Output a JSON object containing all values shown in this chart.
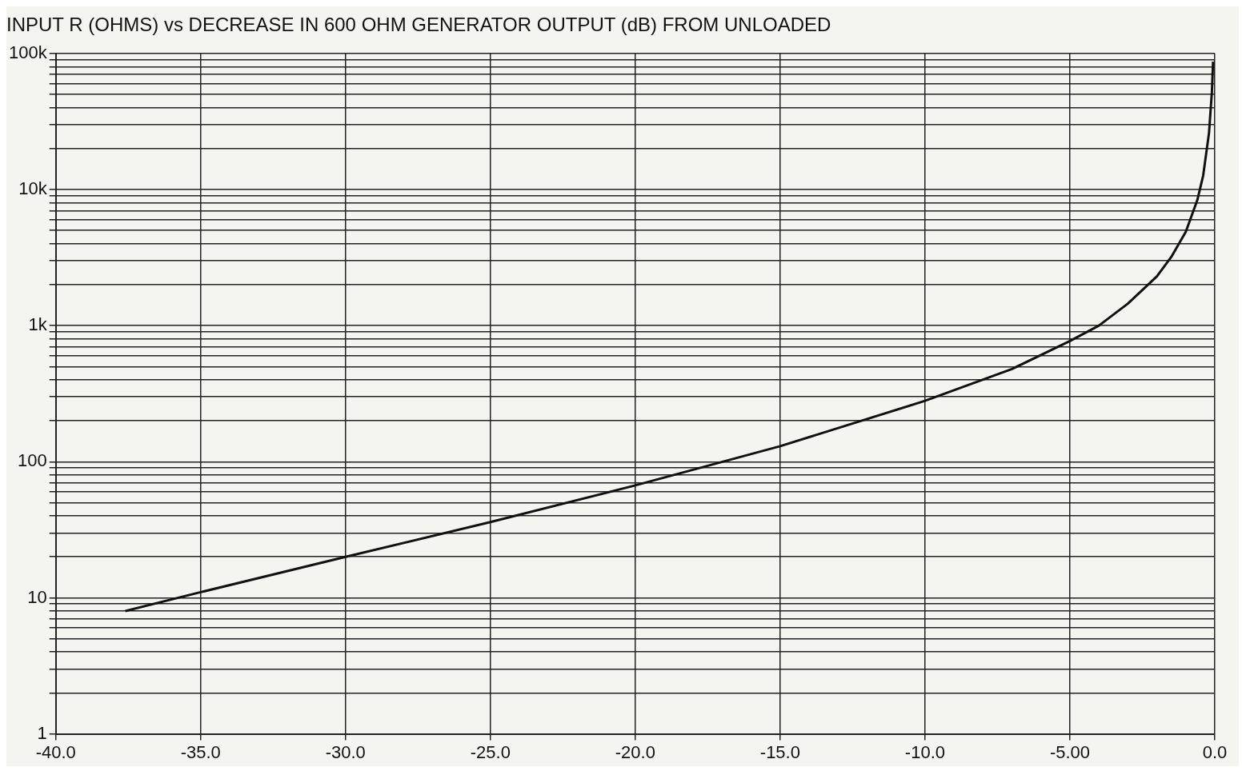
{
  "chart_data": {
    "type": "line",
    "title": "INPUT R (OHMS) vs DECREASE IN 600 OHM GENERATOR OUTPUT (dB) FROM UNLOADED",
    "x": [
      -37.6,
      -35,
      -30,
      -25,
      -20,
      -15,
      -10,
      -7,
      -5,
      -4,
      -3,
      -2,
      -1.5,
      -1,
      -0.6,
      -0.4,
      -0.2,
      -0.1,
      -0.06
    ],
    "series": [
      {
        "color": "#111111",
        "values": [
          8,
          11,
          20,
          36,
          67,
          130,
          280,
          480,
          770,
          1000,
          1450,
          2300,
          3200,
          4900,
          8400,
          12700,
          26000,
          52000,
          87000
        ]
      }
    ],
    "log": "y",
    "grid": true,
    "legend": false,
    "marker": "none",
    "line_style": "solid",
    "xlim": [
      -40,
      0
    ],
    "xticks": [
      {
        "value": -40,
        "label": "-40.0"
      },
      {
        "value": -35,
        "label": "-35.0"
      },
      {
        "value": -30,
        "label": "-30.0"
      },
      {
        "value": -25,
        "label": "-25.0"
      },
      {
        "value": -20,
        "label": "-20.0"
      },
      {
        "value": -15,
        "label": "-15.0"
      },
      {
        "value": -10,
        "label": "-10.0"
      },
      {
        "value": -5,
        "label": "-5.00"
      },
      {
        "value": 0,
        "label": "0.0"
      }
    ],
    "ylim": [
      1,
      100000
    ],
    "yticks": [
      1,
      {
        "value": 2,
        "label": null
      },
      {
        "value": 3,
        "label": null
      },
      {
        "value": 4,
        "label": null
      },
      {
        "value": 5,
        "label": null
      },
      {
        "value": 6,
        "label": null
      },
      {
        "value": 7,
        "label": null
      },
      {
        "value": 8,
        "label": null
      },
      {
        "value": 9,
        "label": null
      },
      10,
      {
        "value": 20,
        "label": null
      },
      {
        "value": 30,
        "label": null
      },
      {
        "value": 40,
        "label": null
      },
      {
        "value": 50,
        "label": null
      },
      {
        "value": 60,
        "label": null
      },
      {
        "value": 70,
        "label": null
      },
      {
        "value": 80,
        "label": null
      },
      {
        "value": 90,
        "label": null
      },
      100,
      {
        "value": 200,
        "label": null
      },
      {
        "value": 300,
        "label": null
      },
      {
        "value": 400,
        "label": null
      },
      {
        "value": 500,
        "label": null
      },
      {
        "value": 600,
        "label": null
      },
      {
        "value": 700,
        "label": null
      },
      {
        "value": 800,
        "label": null
      },
      {
        "value": 900,
        "label": null
      },
      {
        "value": 1000,
        "label": "1k"
      },
      {
        "value": 2000,
        "label": null
      },
      {
        "value": 3000,
        "label": null
      },
      {
        "value": 4000,
        "label": null
      },
      {
        "value": 5000,
        "label": null
      },
      {
        "value": 6000,
        "label": null
      },
      {
        "value": 7000,
        "label": null
      },
      {
        "value": 8000,
        "label": null
      },
      {
        "value": 9000,
        "label": null
      },
      {
        "value": 10000,
        "label": "10k"
      },
      {
        "value": 20000,
        "label": null
      },
      {
        "value": 30000,
        "label": null
      },
      {
        "value": 40000,
        "label": null
      },
      {
        "value": 50000,
        "label": null
      },
      {
        "value": 60000,
        "label": null
      },
      {
        "value": 70000,
        "label": null
      },
      {
        "value": 80000,
        "label": null
      },
      {
        "value": 90000,
        "label": null
      },
      {
        "value": 100000,
        "label": "100k"
      }
    ]
  }
}
